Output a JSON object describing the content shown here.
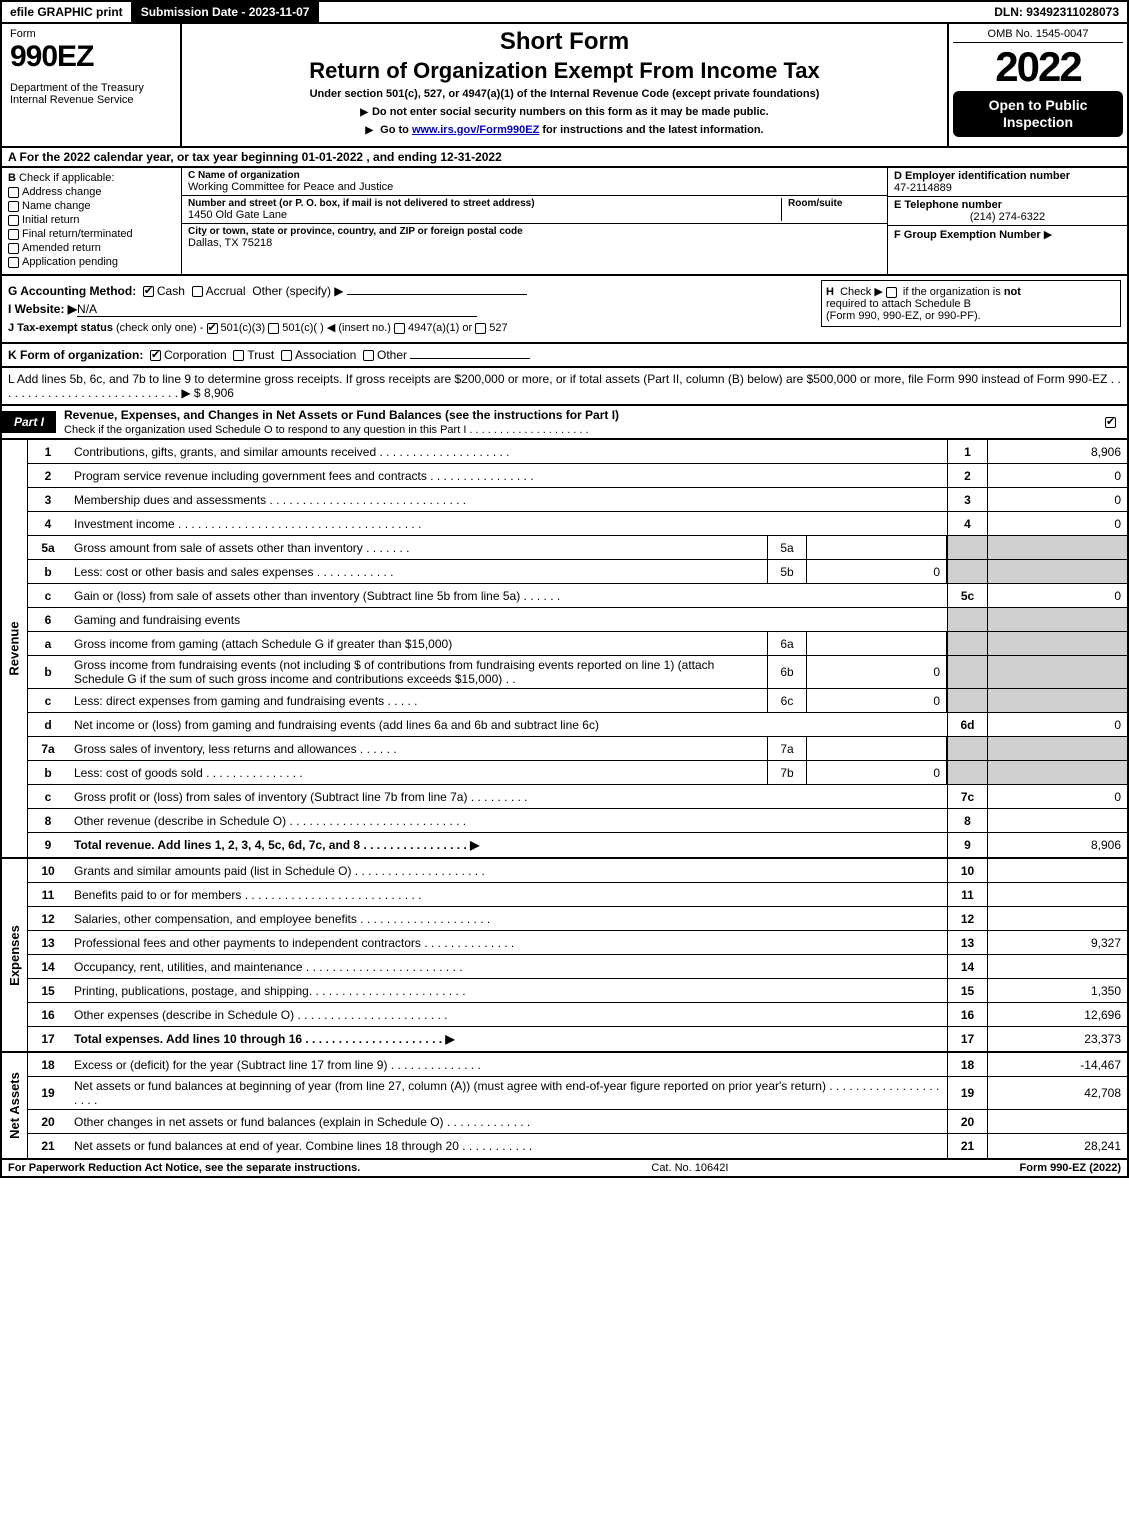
{
  "topbar": {
    "efile": "efile GRAPHIC print",
    "submission": "Submission Date - 2023-11-07",
    "dln": "DLN: 93492311028073"
  },
  "header": {
    "form_word": "Form",
    "form_number": "990EZ",
    "dept1": "Department of the Treasury",
    "dept2": "Internal Revenue Service",
    "short_form": "Short Form",
    "title": "Return of Organization Exempt From Income Tax",
    "subtitle": "Under section 501(c), 527, or 4947(a)(1) of the Internal Revenue Code (except private foundations)",
    "note1": "Do not enter social security numbers on this form as it may be made public.",
    "note2_pre": "Go to ",
    "note2_link": "www.irs.gov/Form990EZ",
    "note2_post": " for instructions and the latest information.",
    "omb": "OMB No. 1545-0047",
    "year": "2022",
    "open_public": "Open to Public Inspection"
  },
  "rowA": "A  For the 2022 calendar year, or tax year beginning 01-01-2022 , and ending 12-31-2022",
  "sectionB": {
    "label": "B",
    "check_if": "Check if applicable:",
    "opts": [
      "Address change",
      "Name change",
      "Initial return",
      "Final return/terminated",
      "Amended return",
      "Application pending"
    ]
  },
  "sectionC": {
    "name_label": "C Name of organization",
    "name": "Working Committee for Peace and Justice",
    "street_label": "Number and street (or P. O. box, if mail is not delivered to street address)",
    "room_label": "Room/suite",
    "street": "1450 Old Gate Lane",
    "city_label": "City or town, state or province, country, and ZIP or foreign postal code",
    "city": "Dallas, TX  75218"
  },
  "sectionDE": {
    "d_label": "D Employer identification number",
    "ein": "47-2114889",
    "e_label": "E Telephone number",
    "phone": "(214) 274-6322",
    "f_label": "F Group Exemption Number",
    "f_arrow": "▶"
  },
  "sectionG": {
    "label": "G Accounting Method:",
    "cash": "Cash",
    "accrual": "Accrual",
    "other": "Other (specify) ▶"
  },
  "sectionH": {
    "label": "H",
    "text1": "Check ▶",
    "text2": "if the organization is",
    "not": "not",
    "text3": "required to attach Schedule B",
    "text4": "(Form 990, 990-EZ, or 990-PF)."
  },
  "sectionI": {
    "label": "I Website: ▶",
    "value": "N/A"
  },
  "sectionJ": {
    "label": "J Tax-exempt status",
    "sub": "(check only one) -",
    "o1": "501(c)(3)",
    "o2": "501(c)(  ) ◀ (insert no.)",
    "o3": "4947(a)(1) or",
    "o4": "527"
  },
  "sectionK": {
    "label": "K Form of organization:",
    "o1": "Corporation",
    "o2": "Trust",
    "o3": "Association",
    "o4": "Other"
  },
  "sectionL": {
    "text": "L Add lines 5b, 6c, and 7b to line 9 to determine gross receipts. If gross receipts are $200,000 or more, or if total assets (Part II, column (B) below) are $500,000 or more, file Form 990 instead of Form 990-EZ  .  .  .  .  .  .  .  .  .  .  .  .  .  .  .  .  .  .  .  .  .  .  .  .  .  .  .  . ▶ $",
    "amount": "8,906"
  },
  "part1": {
    "tag": "Part I",
    "title": "Revenue, Expenses, and Changes in Net Assets or Fund Balances (see the instructions for Part I)",
    "check_line": "Check if the organization used Schedule O to respond to any question in this Part I  .  .  .  .  .  .  .  .  .  .  .  .  .  .  .  .  .  .  .  ."
  },
  "sides": {
    "revenue": "Revenue",
    "expenses": "Expenses",
    "netassets": "Net Assets"
  },
  "lines": {
    "l1": {
      "n": "1",
      "d": "Contributions, gifts, grants, and similar amounts received  .  .  .  .  .  .  .  .  .  .  .  .  .  .  .  .  .  .  .  .",
      "r": "1",
      "v": "8,906"
    },
    "l2": {
      "n": "2",
      "d": "Program service revenue including government fees and contracts  .  .  .  .  .  .  .  .  .  .  .  .  .  .  .  .",
      "r": "2",
      "v": "0"
    },
    "l3": {
      "n": "3",
      "d": "Membership dues and assessments  .  .  .  .  .  .  .  .  .  .  .  .  .  .  .  .  .  .  .  .  .  .  .  .  .  .  .  .  .  .",
      "r": "3",
      "v": "0"
    },
    "l4": {
      "n": "4",
      "d": "Investment income  .  .  .  .  .  .  .  .  .  .  .  .  .  .  .  .  .  .  .  .  .  .  .  .  .  .  .  .  .  .  .  .  .  .  .  .  .",
      "r": "4",
      "v": "0"
    },
    "l5a": {
      "n": "5a",
      "d": "Gross amount from sale of assets other than inventory  .  .  .  .  .  .  .",
      "sc": "5a",
      "sv": ""
    },
    "l5b": {
      "n": "b",
      "d": "Less: cost or other basis and sales expenses  .  .  .  .  .  .  .  .  .  .  .  .",
      "sc": "5b",
      "sv": "0"
    },
    "l5c": {
      "n": "c",
      "d": "Gain or (loss) from sale of assets other than inventory (Subtract line 5b from line 5a)  .  .  .  .  .  .",
      "r": "5c",
      "v": "0"
    },
    "l6": {
      "n": "6",
      "d": "Gaming and fundraising events"
    },
    "l6a": {
      "n": "a",
      "d": "Gross income from gaming (attach Schedule G if greater than $15,000)",
      "sc": "6a",
      "sv": ""
    },
    "l6b": {
      "n": "b",
      "d": "Gross income from fundraising events (not including $                      of contributions from fundraising events reported on line 1) (attach Schedule G if the sum of such gross income and contributions exceeds $15,000)   .   .",
      "sc": "6b",
      "sv": "0"
    },
    "l6c": {
      "n": "c",
      "d": "Less: direct expenses from gaming and fundraising events  .  .  .  .  .",
      "sc": "6c",
      "sv": "0"
    },
    "l6d": {
      "n": "d",
      "d": "Net income or (loss) from gaming and fundraising events (add lines 6a and 6b and subtract line 6c)",
      "r": "6d",
      "v": "0"
    },
    "l7a": {
      "n": "7a",
      "d": "Gross sales of inventory, less returns and allowances  .  .  .  .  .  .",
      "sc": "7a",
      "sv": ""
    },
    "l7b": {
      "n": "b",
      "d": "Less: cost of goods sold          .  .  .  .  .  .  .  .  .  .  .  .  .  .  .",
      "sc": "7b",
      "sv": "0"
    },
    "l7c": {
      "n": "c",
      "d": "Gross profit or (loss) from sales of inventory (Subtract line 7b from line 7a)  .  .  .  .  .  .  .  .  .",
      "r": "7c",
      "v": "0"
    },
    "l8": {
      "n": "8",
      "d": "Other revenue (describe in Schedule O)  .  .  .  .  .  .  .  .  .  .  .  .  .  .  .  .  .  .  .  .  .  .  .  .  .  .  .",
      "r": "8",
      "v": ""
    },
    "l9": {
      "n": "9",
      "d": "Total revenue. Add lines 1, 2, 3, 4, 5c, 6d, 7c, and 8   .   .   .   .   .   .   .   .   .   .   .   .   .   .   .   .     ▶",
      "r": "9",
      "v": "8,906"
    },
    "l10": {
      "n": "10",
      "d": "Grants and similar amounts paid (list in Schedule O)  .  .  .  .  .  .  .  .  .  .  .  .  .  .  .  .  .  .  .  .",
      "r": "10",
      "v": ""
    },
    "l11": {
      "n": "11",
      "d": "Benefits paid to or for members       .  .  .  .  .  .  .  .  .  .  .  .  .  .  .  .  .  .  .  .  .  .  .  .  .  .  .",
      "r": "11",
      "v": ""
    },
    "l12": {
      "n": "12",
      "d": "Salaries, other compensation, and employee benefits  .  .  .  .  .  .  .  .  .  .  .  .  .  .  .  .  .  .  .  .",
      "r": "12",
      "v": ""
    },
    "l13": {
      "n": "13",
      "d": "Professional fees and other payments to independent contractors  .  .  .  .  .  .  .  .  .  .  .  .  .  .",
      "r": "13",
      "v": "9,327"
    },
    "l14": {
      "n": "14",
      "d": "Occupancy, rent, utilities, and maintenance  .  .  .  .  .  .  .  .  .  .  .  .  .  .  .  .  .  .  .  .  .  .  .  .",
      "r": "14",
      "v": ""
    },
    "l15": {
      "n": "15",
      "d": "Printing, publications, postage, and shipping.  .  .  .  .  .  .  .  .  .  .  .  .  .  .  .  .  .  .  .  .  .  .  .",
      "r": "15",
      "v": "1,350"
    },
    "l16": {
      "n": "16",
      "d": "Other expenses (describe in Schedule O)       .  .  .  .  .  .  .  .  .  .  .  .  .  .  .  .  .  .  .  .  .  .  .",
      "r": "16",
      "v": "12,696"
    },
    "l17": {
      "n": "17",
      "d": "Total expenses. Add lines 10 through 16       .  .  .  .  .  .  .  .  .  .  .  .  .  .  .  .  .  .  .  .  .     ▶",
      "r": "17",
      "v": "23,373"
    },
    "l18": {
      "n": "18",
      "d": "Excess or (deficit) for the year (Subtract line 17 from line 9)        .  .  .  .  .  .  .  .  .  .  .  .  .  .",
      "r": "18",
      "v": "-14,467"
    },
    "l19": {
      "n": "19",
      "d": "Net assets or fund balances at beginning of year (from line 27, column (A)) (must agree with end-of-year figure reported on prior year's return)  .  .  .  .  .  .  .  .  .  .  .  .  .  .  .  .  .  .  .  .  .",
      "r": "19",
      "v": "42,708"
    },
    "l20": {
      "n": "20",
      "d": "Other changes in net assets or fund balances (explain in Schedule O)  .  .  .  .  .  .  .  .  .  .  .  .  .",
      "r": "20",
      "v": ""
    },
    "l21": {
      "n": "21",
      "d": "Net assets or fund balances at end of year. Combine lines 18 through 20  .  .  .  .  .  .  .  .  .  .  .",
      "r": "21",
      "v": "28,241"
    }
  },
  "footer": {
    "left": "For Paperwork Reduction Act Notice, see the separate instructions.",
    "center": "Cat. No. 10642I",
    "right": "Form 990-EZ (2022)"
  }
}
